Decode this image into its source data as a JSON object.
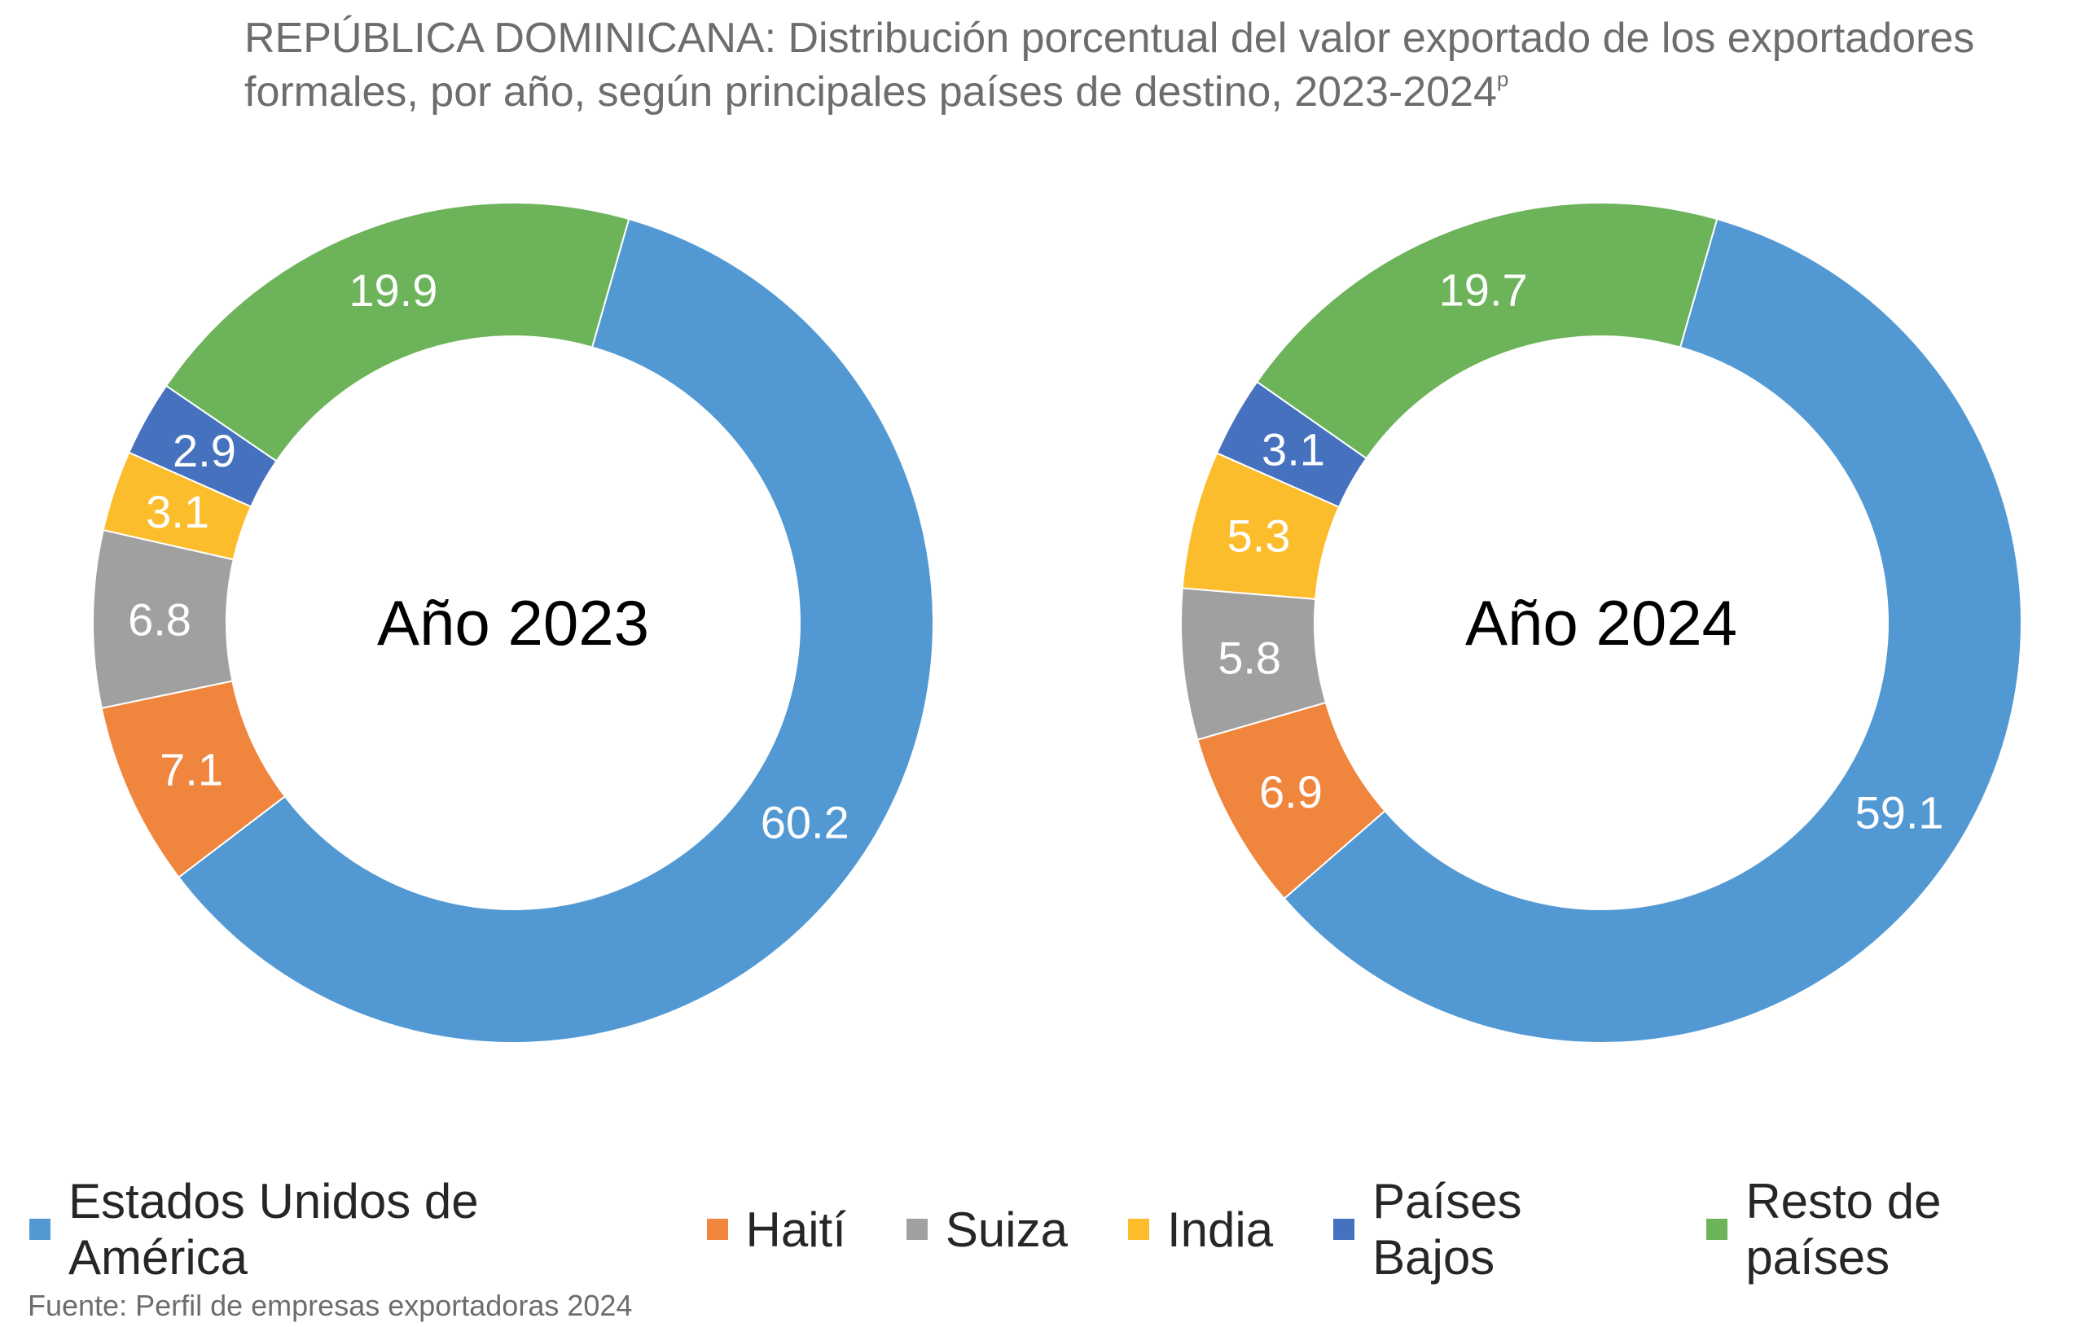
{
  "title": {
    "main": "REPÚBLICA DOMINICANA: Distribución porcentual del valor exportado de los exportadores formales, por año, según principales países de destino, 2023-2024",
    "superscript": "p"
  },
  "source": "Fuente: Perfil de empresas exportadoras 2024",
  "colors": {
    "Estados Unidos de América": "#5299d3",
    "Haití": "#f0853d",
    "Suiza": "#a0a0a0",
    "India": "#fbbd2c",
    "Países Bajos": "#4571bf",
    "Resto de países": "#6db35a"
  },
  "legend": [
    {
      "label": "Estados Unidos de América",
      "color": "#5299d3"
    },
    {
      "label": "Haití",
      "color": "#f0853d"
    },
    {
      "label": "Suiza",
      "color": "#a0a0a0"
    },
    {
      "label": "India",
      "color": "#fbbd2c"
    },
    {
      "label": "Países Bajos",
      "color": "#4571bf"
    },
    {
      "label": "Resto de países",
      "color": "#6db35a"
    }
  ],
  "chart_data": [
    {
      "type": "pie",
      "style": "donut",
      "center_label": "Año 2023",
      "categories": [
        "Estados Unidos de América",
        "Haití",
        "Suiza",
        "India",
        "Países Bajos",
        "Resto de países"
      ],
      "values": [
        60.2,
        7.1,
        6.8,
        3.1,
        2.9,
        19.9
      ],
      "data_labels": [
        "60.2",
        "7.1",
        "6.8",
        "3.1",
        "2.9",
        "19.9"
      ]
    },
    {
      "type": "pie",
      "style": "donut",
      "center_label": "Año 2024",
      "categories": [
        "Estados Unidos de América",
        "Haití",
        "Suiza",
        "India",
        "Países Bajos",
        "Resto de países"
      ],
      "values": [
        59.1,
        6.9,
        5.8,
        5.3,
        3.1,
        19.7
      ],
      "data_labels": [
        "59.1",
        "6.9",
        "5.8",
        "5.3",
        "3.1",
        "19.7"
      ]
    }
  ]
}
